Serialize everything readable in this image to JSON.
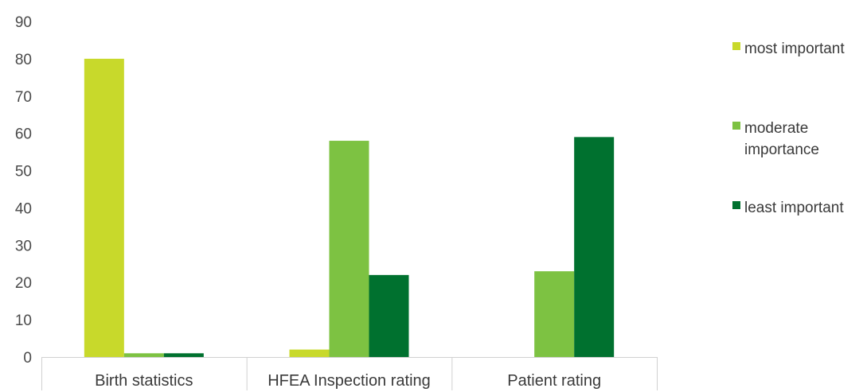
{
  "chart_data": {
    "type": "bar",
    "categories": [
      "Birth statistics",
      "HFEA Inspection rating",
      "Patient rating"
    ],
    "series": [
      {
        "name": "most important",
        "color": "#c8d92b",
        "values": [
          80,
          2,
          0
        ]
      },
      {
        "name": "moderate importance",
        "color": "#7dc242",
        "values": [
          1,
          58,
          23
        ]
      },
      {
        "name": "least important",
        "color": "#00712f",
        "values": [
          1,
          22,
          59
        ]
      }
    ],
    "ylim": [
      0,
      90
    ],
    "yticks": [
      0,
      10,
      20,
      30,
      40,
      50,
      60,
      70,
      80,
      90
    ],
    "grid": false,
    "legend_position": "right",
    "legend_lines": [
      [
        "most important"
      ],
      [
        "moderate",
        "importance"
      ],
      [
        "least important"
      ]
    ],
    "title": "",
    "xlabel": "",
    "ylabel": ""
  }
}
